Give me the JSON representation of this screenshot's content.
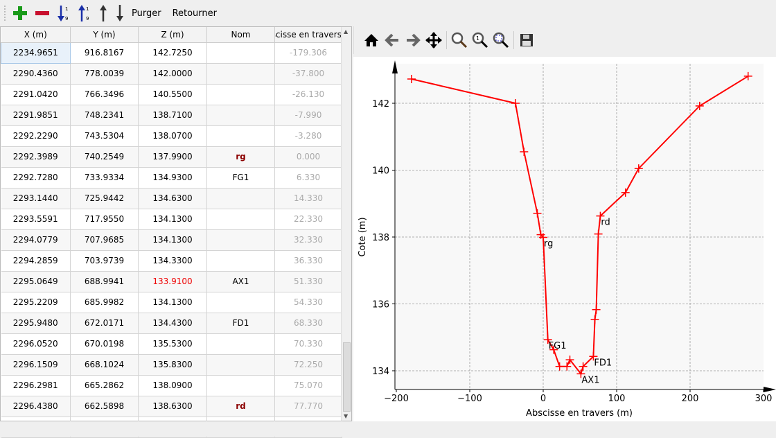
{
  "toolbar": {
    "add": "add-row",
    "remove": "remove-row",
    "sort_asc": "sort-ascending",
    "sort_desc": "sort-descending",
    "up": "move-up",
    "down": "move-down",
    "purge_label": "Purger",
    "reverse_label": "Retourner"
  },
  "table": {
    "headers": [
      "X (m)",
      "Y (m)",
      "Z (m)",
      "Nom",
      "Abscisse en travers"
    ],
    "rows": [
      [
        "2234.9651",
        "916.8167",
        "142.7250",
        "",
        "-179.306"
      ],
      [
        "2290.4360",
        "778.0039",
        "142.0000",
        "",
        "-37.800"
      ],
      [
        "2291.0420",
        "766.3496",
        "140.5500",
        "",
        "-26.130"
      ],
      [
        "2291.9851",
        "748.2341",
        "138.7100",
        "",
        "-7.990"
      ],
      [
        "2292.2290",
        "743.5304",
        "138.0700",
        "",
        "-3.280"
      ],
      [
        "2292.3989",
        "740.2549",
        "137.9900",
        "rg",
        "0.000"
      ],
      [
        "2292.7280",
        "733.9334",
        "134.9300",
        "FG1",
        "6.330"
      ],
      [
        "2293.1440",
        "725.9442",
        "134.6300",
        "",
        "14.330"
      ],
      [
        "2293.5591",
        "717.9550",
        "134.1300",
        "",
        "22.330"
      ],
      [
        "2294.0779",
        "707.9685",
        "134.1300",
        "",
        "32.330"
      ],
      [
        "2294.2859",
        "703.9739",
        "134.3300",
        "",
        "36.330"
      ],
      [
        "2295.0649",
        "688.9941",
        "133.9100",
        "AX1",
        "51.330"
      ],
      [
        "2295.2209",
        "685.9982",
        "134.1300",
        "",
        "54.330"
      ],
      [
        "2295.9480",
        "672.0171",
        "134.4300",
        "FD1",
        "68.330"
      ],
      [
        "2296.0520",
        "670.0198",
        "135.5300",
        "",
        "70.330"
      ],
      [
        "2296.1509",
        "668.1024",
        "135.8300",
        "",
        "72.250"
      ],
      [
        "2296.2981",
        "665.2862",
        "138.0900",
        "",
        "75.070"
      ],
      [
        "2296.4380",
        "662.5898",
        "138.6300",
        "rd",
        "77.770"
      ]
    ]
  },
  "plot_toolbar": [
    "home",
    "back",
    "forward",
    "pan",
    "zoom",
    "zoom-1",
    "zoom-fit",
    "save"
  ],
  "chart_data": {
    "type": "line",
    "xlabel": "Abscisse en travers (m)",
    "ylabel": "Cote (m)",
    "xlim": [
      -200,
      300
    ],
    "ylim": [
      133.5,
      143.2
    ],
    "xticks": [
      "−200",
      "−100",
      "0",
      "100",
      "200",
      "300"
    ],
    "xtick_values": [
      -200,
      -100,
      0,
      100,
      200,
      300
    ],
    "yticks": [
      "134",
      "136",
      "138",
      "140",
      "142"
    ],
    "ytick_values": [
      134,
      136,
      138,
      140,
      142
    ],
    "grid": true,
    "color": "#ff0000",
    "marker": "+",
    "x": [
      -179.306,
      -37.8,
      -26.13,
      -7.99,
      -3.28,
      0,
      6.33,
      14.33,
      22.33,
      32.33,
      36.33,
      51.33,
      54.33,
      68.33,
      70.33,
      72.25,
      75.07,
      77.77,
      112,
      130,
      213,
      279
    ],
    "y": [
      142.725,
      142.0,
      140.55,
      138.71,
      138.07,
      137.99,
      134.93,
      134.63,
      134.13,
      134.13,
      134.33,
      133.91,
      134.13,
      134.43,
      135.53,
      135.83,
      138.09,
      138.63,
      139.33,
      140.05,
      141.92,
      142.81
    ],
    "annotations": [
      {
        "text": "rg",
        "x": 0,
        "y": 137.99
      },
      {
        "text": "FG1",
        "x": 6.33,
        "y": 134.93
      },
      {
        "text": "AX1",
        "x": 51.33,
        "y": 133.91
      },
      {
        "text": "FD1",
        "x": 68.33,
        "y": 134.43
      },
      {
        "text": "rd",
        "x": 77.77,
        "y": 138.63
      }
    ]
  }
}
